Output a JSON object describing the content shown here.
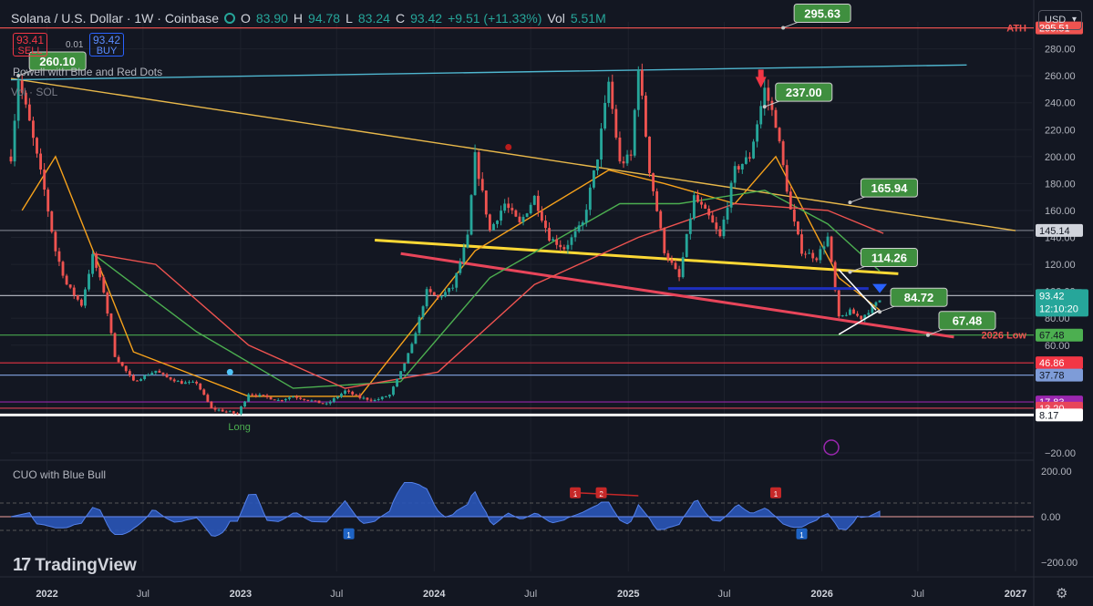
{
  "header": {
    "symbol": "Solana / U.S. Dollar · 1W · Coinbase",
    "open_label": "O",
    "open": "83.90",
    "high_label": "H",
    "high": "94.78",
    "low_label": "L",
    "low": "83.24",
    "close_label": "C",
    "close": "93.42",
    "change": "+9.51 (+11.33%)",
    "vol_label": "Vol",
    "vol": "5.51M"
  },
  "trade": {
    "sell_price": "93.41",
    "sell_label": "SELL",
    "spread": "0.01",
    "buy_price": "93.42",
    "buy_label": "BUY"
  },
  "indicators": {
    "main": "Powell with Blue and Red Dots",
    "volume": "Vol · SOL",
    "oscillator": "CUO with Blue Bull",
    "bull_marker": "Long"
  },
  "currency": "USD",
  "brand": {
    "mark": "17",
    "name": "TradingView"
  },
  "colors": {
    "background": "#131722",
    "up": "#26a69a",
    "down": "#ef5350",
    "resistance": "#fdd835",
    "support": "#e8455a",
    "trendline": "#e8b84a",
    "ath_line": "#ef5350",
    "channel_top": "#4fb6cf"
  },
  "chart_data": {
    "type": "candlestick",
    "symbol": "SOLUSD",
    "timeframe": "1W",
    "exchange": "Coinbase",
    "x_range": [
      "2021-10-25",
      "2027-02-01"
    ],
    "x_ticks": [
      "2022",
      "Jul",
      "2023",
      "Jul",
      "2024",
      "Jul",
      "2025",
      "Jul",
      "2026",
      "Jul",
      "2027"
    ],
    "x_tick_dates": [
      "2022-01-01",
      "2022-07-01",
      "2023-01-01",
      "2023-07-01",
      "2024-01-01",
      "2024-07-01",
      "2025-01-01",
      "2025-07-01",
      "2026-01-01",
      "2026-07-01",
      "2027-01-01"
    ],
    "y_range": [
      -20,
      300
    ],
    "y_ticks": [
      "280.00",
      "260.00",
      "240.00",
      "220.00",
      "200.00",
      "180.00",
      "160.00",
      "140.00",
      "120.00",
      "100.00",
      "80.00",
      "60.00",
      "−20.00"
    ],
    "y_tick_values": [
      280,
      260,
      240,
      220,
      200,
      180,
      160,
      140,
      120,
      100,
      80,
      60,
      -20
    ],
    "price_path": [
      [
        "2021-10-25",
        200
      ],
      [
        "2021-11-08",
        258
      ],
      [
        "2021-11-29",
        225
      ],
      [
        "2021-12-27",
        175
      ],
      [
        "2022-01-17",
        130
      ],
      [
        "2022-02-07",
        105
      ],
      [
        "2022-03-07",
        90
      ],
      [
        "2022-03-28",
        126
      ],
      [
        "2022-04-18",
        100
      ],
      [
        "2022-05-09",
        52
      ],
      [
        "2022-06-13",
        33
      ],
      [
        "2022-07-25",
        41
      ],
      [
        "2022-08-15",
        36
      ],
      [
        "2022-09-12",
        32
      ],
      [
        "2022-10-10",
        32
      ],
      [
        "2022-11-07",
        13
      ],
      [
        "2022-12-26",
        9
      ],
      [
        "2023-01-16",
        24
      ],
      [
        "2023-02-13",
        22
      ],
      [
        "2023-03-13",
        19
      ],
      [
        "2023-04-10",
        22
      ],
      [
        "2023-06-12",
        16
      ],
      [
        "2023-07-17",
        26
      ],
      [
        "2023-08-14",
        21
      ],
      [
        "2023-09-11",
        19
      ],
      [
        "2023-10-09",
        23
      ],
      [
        "2023-10-30",
        40
      ],
      [
        "2023-11-20",
        60
      ],
      [
        "2023-12-18",
        100
      ],
      [
        "2024-01-08",
        95
      ],
      [
        "2024-02-05",
        103
      ],
      [
        "2024-03-04",
        140
      ],
      [
        "2024-03-18",
        200
      ],
      [
        "2024-04-15",
        145
      ],
      [
        "2024-05-13",
        165
      ],
      [
        "2024-06-10",
        150
      ],
      [
        "2024-07-08",
        170
      ],
      [
        "2024-08-05",
        140
      ],
      [
        "2024-09-02",
        132
      ],
      [
        "2024-10-07",
        150
      ],
      [
        "2024-11-04",
        200
      ],
      [
        "2024-11-25",
        255
      ],
      [
        "2024-12-16",
        195
      ],
      [
        "2025-01-06",
        200
      ],
      [
        "2025-01-20",
        268
      ],
      [
        "2025-02-10",
        190
      ],
      [
        "2025-03-10",
        130
      ],
      [
        "2025-04-07",
        110
      ],
      [
        "2025-05-05",
        170
      ],
      [
        "2025-06-02",
        155
      ],
      [
        "2025-06-23",
        140
      ],
      [
        "2025-07-21",
        190
      ],
      [
        "2025-08-18",
        200
      ],
      [
        "2025-09-15",
        250
      ],
      [
        "2025-10-06",
        225
      ],
      [
        "2025-11-03",
        160
      ],
      [
        "2025-11-24",
        130
      ],
      [
        "2025-12-22",
        125
      ],
      [
        "2026-01-12",
        140
      ],
      [
        "2026-02-02",
        80
      ],
      [
        "2026-02-23",
        85
      ],
      [
        "2026-03-16",
        80
      ],
      [
        "2026-04-06",
        88
      ],
      [
        "2026-04-20",
        93.42
      ]
    ],
    "moving_averages": [
      {
        "color": "#f7a21b",
        "points": [
          [
            "2021-11-15",
            160
          ],
          [
            "2022-01-17",
            200
          ],
          [
            "2022-06-13",
            55
          ],
          [
            "2023-01-16",
            22
          ],
          [
            "2023-08-14",
            22
          ],
          [
            "2024-03-18",
            130
          ],
          [
            "2024-11-25",
            190
          ],
          [
            "2025-03-10",
            180
          ],
          [
            "2025-07-21",
            165
          ],
          [
            "2025-10-06",
            200
          ],
          [
            "2026-02-02",
            110
          ],
          [
            "2026-04-20",
            86
          ]
        ]
      },
      {
        "color": "#4caf50",
        "points": [
          [
            "2022-03-28",
            128
          ],
          [
            "2022-10-10",
            70
          ],
          [
            "2023-04-10",
            28
          ],
          [
            "2023-10-30",
            33
          ],
          [
            "2024-04-15",
            110
          ],
          [
            "2024-12-16",
            165
          ],
          [
            "2025-04-07",
            165
          ],
          [
            "2025-09-15",
            175
          ],
          [
            "2026-01-12",
            150
          ],
          [
            "2026-04-20",
            115
          ]
        ]
      },
      {
        "color": "#ef5350",
        "points": [
          [
            "2022-03-28",
            128
          ],
          [
            "2022-07-25",
            120
          ],
          [
            "2023-01-16",
            60
          ],
          [
            "2023-07-17",
            28
          ],
          [
            "2024-01-08",
            40
          ],
          [
            "2024-07-08",
            105
          ],
          [
            "2025-01-20",
            140
          ],
          [
            "2025-07-21",
            165
          ],
          [
            "2026-01-12",
            160
          ],
          [
            "2026-04-27",
            143
          ]
        ]
      }
    ],
    "trendlines": [
      {
        "name": "descending-trendline",
        "color": "#e8b84a",
        "from": [
          "2021-10-25",
          258
        ],
        "to": [
          "2027-01-01",
          145
        ]
      },
      {
        "name": "channel-top",
        "color": "#4fb6cf",
        "from": [
          "2021-10-25",
          257
        ],
        "to": [
          "2026-10-01",
          268
        ]
      },
      {
        "name": "yellow-resistance",
        "color": "#fdd835",
        "from": [
          "2023-09-11",
          138
        ],
        "to": [
          "2026-05-25",
          113
        ]
      },
      {
        "name": "red-support",
        "color": "#e8455a",
        "from": [
          "2023-10-30",
          128
        ],
        "to": [
          "2026-09-07",
          66
        ]
      }
    ],
    "horizontal_levels": [
      {
        "value": 295.51,
        "label": "295.51",
        "text": "ATH",
        "color": "#ef5350"
      },
      {
        "value": 145.14,
        "label": "145.14",
        "color": "#787b86"
      },
      {
        "value": 96.81,
        "label": "96.81",
        "color": "#b2b5be"
      },
      {
        "value": 67.48,
        "label": "67.48",
        "text": "2026 Low",
        "color": "#4caf50"
      },
      {
        "value": 46.86,
        "label": "46.86",
        "color": "#f23645"
      },
      {
        "value": 37.78,
        "label": "37.78",
        "color": "#7e9cd8"
      },
      {
        "value": 17.83,
        "label": "17.83",
        "color": "#9c27b0"
      },
      {
        "value": 13.2,
        "label": "13.20",
        "color": "#e8455a"
      },
      {
        "value": 8.17,
        "label": "8.17",
        "color": "#ffffff"
      }
    ],
    "current_price": {
      "value": 93.42,
      "label": "93.42",
      "countdown": "12:10:20"
    },
    "annotations": [
      {
        "text": "295.63",
        "x": "2025-10-20",
        "y": 295.63
      },
      {
        "text": "260.10",
        "x": "2021-11-08",
        "y": 260.1
      },
      {
        "text": "237.00",
        "x": "2025-09-15",
        "y": 237.0
      },
      {
        "text": "165.94",
        "x": "2026-02-23",
        "y": 165.94
      },
      {
        "text": "114.26",
        "x": "2026-02-23",
        "y": 114.26
      },
      {
        "text": "84.72",
        "x": "2026-04-20",
        "y": 84.72
      },
      {
        "text": "67.48",
        "x": "2026-07-20",
        "y": 67.48
      }
    ],
    "oscillator": {
      "name": "CUO with Blue Bull",
      "y_ticks": [
        "200.00",
        "0.00",
        "−200.00"
      ],
      "y_tick_values": [
        200,
        0,
        -200
      ],
      "markers": [
        {
          "text": "1",
          "x": "2024-09-23",
          "type": "bear"
        },
        {
          "text": "2",
          "x": "2024-11-11",
          "type": "bear"
        },
        {
          "text": "1",
          "x": "2025-10-06",
          "type": "bear"
        },
        {
          "text": "1",
          "x": "2023-07-24",
          "type": "bull"
        },
        {
          "text": "1",
          "x": "2025-11-24",
          "type": "bull"
        }
      ]
    }
  }
}
